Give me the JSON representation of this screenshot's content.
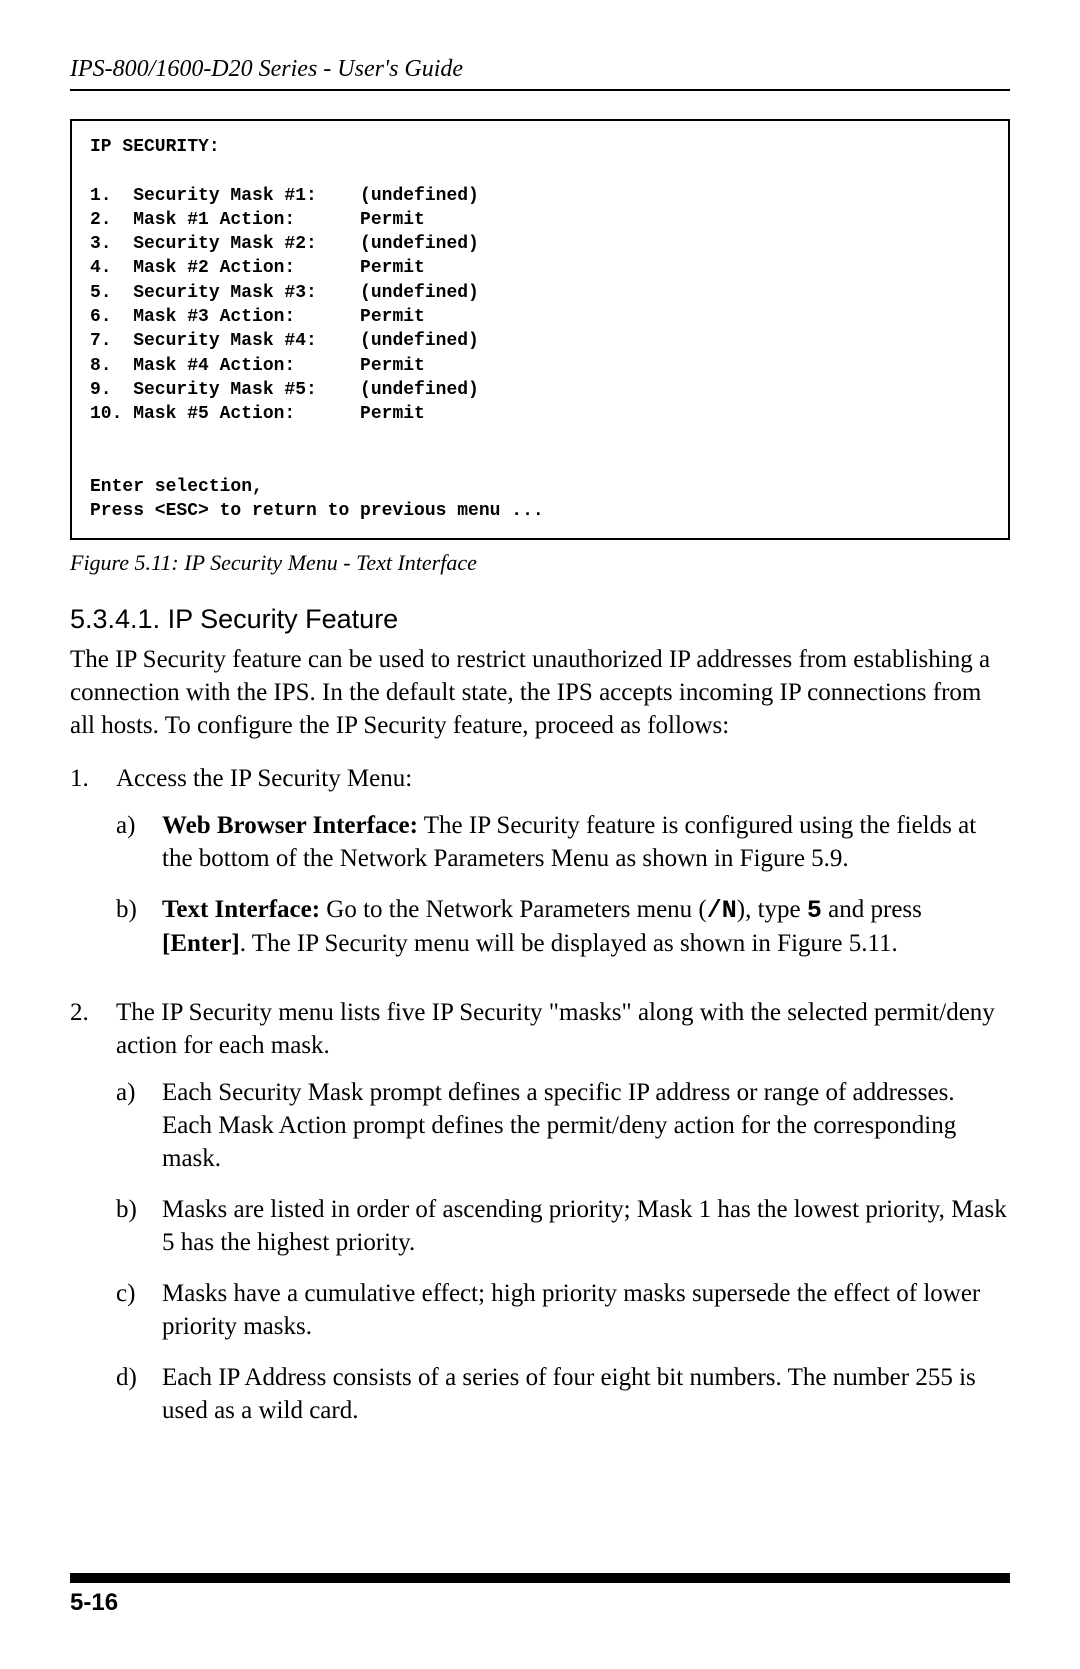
{
  "header": {
    "running_title": "IPS-800/1600-D20 Series - User's Guide"
  },
  "terminal": {
    "title": "IP SECURITY:",
    "rows": [
      {
        "num": "1.",
        "label": "Security Mask #1:",
        "value": "(undefined)"
      },
      {
        "num": "2.",
        "label": "Mask #1 Action:",
        "value": "Permit"
      },
      {
        "num": "3.",
        "label": "Security Mask #2:",
        "value": "(undefined)"
      },
      {
        "num": "4.",
        "label": "Mask #2 Action:",
        "value": "Permit"
      },
      {
        "num": "5.",
        "label": "Security Mask #3:",
        "value": "(undefined)"
      },
      {
        "num": "6.",
        "label": "Mask #3 Action:",
        "value": "Permit"
      },
      {
        "num": "7.",
        "label": "Security Mask #4:",
        "value": "(undefined)"
      },
      {
        "num": "8.",
        "label": "Mask #4 Action:",
        "value": "Permit"
      },
      {
        "num": "9.",
        "label": "Security Mask #5:",
        "value": "(undefined)"
      },
      {
        "num": "10.",
        "label": "Mask #5 Action:",
        "value": "Permit"
      }
    ],
    "prompt1": "Enter selection,",
    "prompt2": "Press <ESC> to return to previous menu ..."
  },
  "figure_caption": "Figure 5.11:  IP Security Menu - Text Interface",
  "section": {
    "number": "5.3.4.1.",
    "title": "IP Security Feature"
  },
  "intro": "The IP Security feature can be used to restrict unauthorized IP addresses from establishing a connection with the IPS.  In the default state, the IPS accepts incoming IP connections from all hosts.   To configure the IP Security feature, proceed as follows:",
  "list1": {
    "item1_marker": "1.",
    "item1_text": "Access the IP Security Menu:",
    "item1a_marker": "a)",
    "item1a_bold": "Web Browser Interface:",
    "item1a_text": "  The IP Security feature is configured using the fields at the bottom of the Network Parameters Menu as shown in Figure 5.9.",
    "item1b_marker": "b)",
    "item1b_bold": "Text Interface:",
    "item1b_text_before": "  Go to the Network Parameters menu (",
    "item1b_mono": "/N",
    "item1b_text_mid": "), type ",
    "item1b_mono2": "5",
    "item1b_text_after1": " and press ",
    "item1b_bold2": "[Enter]",
    "item1b_text_after2": ".  The IP Security menu will be displayed as shown in Figure 5.11.",
    "item2_marker": "2.",
    "item2_text": "The IP Security menu lists five IP Security \"masks\" along with the selected permit/deny action for each mask.",
    "item2a_marker": "a)",
    "item2a_text": "Each Security Mask prompt defines a specific IP address or range of addresses.  Each Mask Action prompt defines the permit/deny action for the corresponding mask.",
    "item2b_marker": "b)",
    "item2b_text": "Masks are listed in order of ascending priority; Mask 1 has the lowest priority, Mask 5 has the highest priority.",
    "item2c_marker": "c)",
    "item2c_text": "Masks have a cumulative effect; high priority masks supersede the effect of lower priority masks.",
    "item2d_marker": "d)",
    "item2d_text": "Each IP Address consists of a series of four eight bit numbers.  The number 255 is used as a wild card."
  },
  "footer": {
    "page_number": "5-16"
  }
}
